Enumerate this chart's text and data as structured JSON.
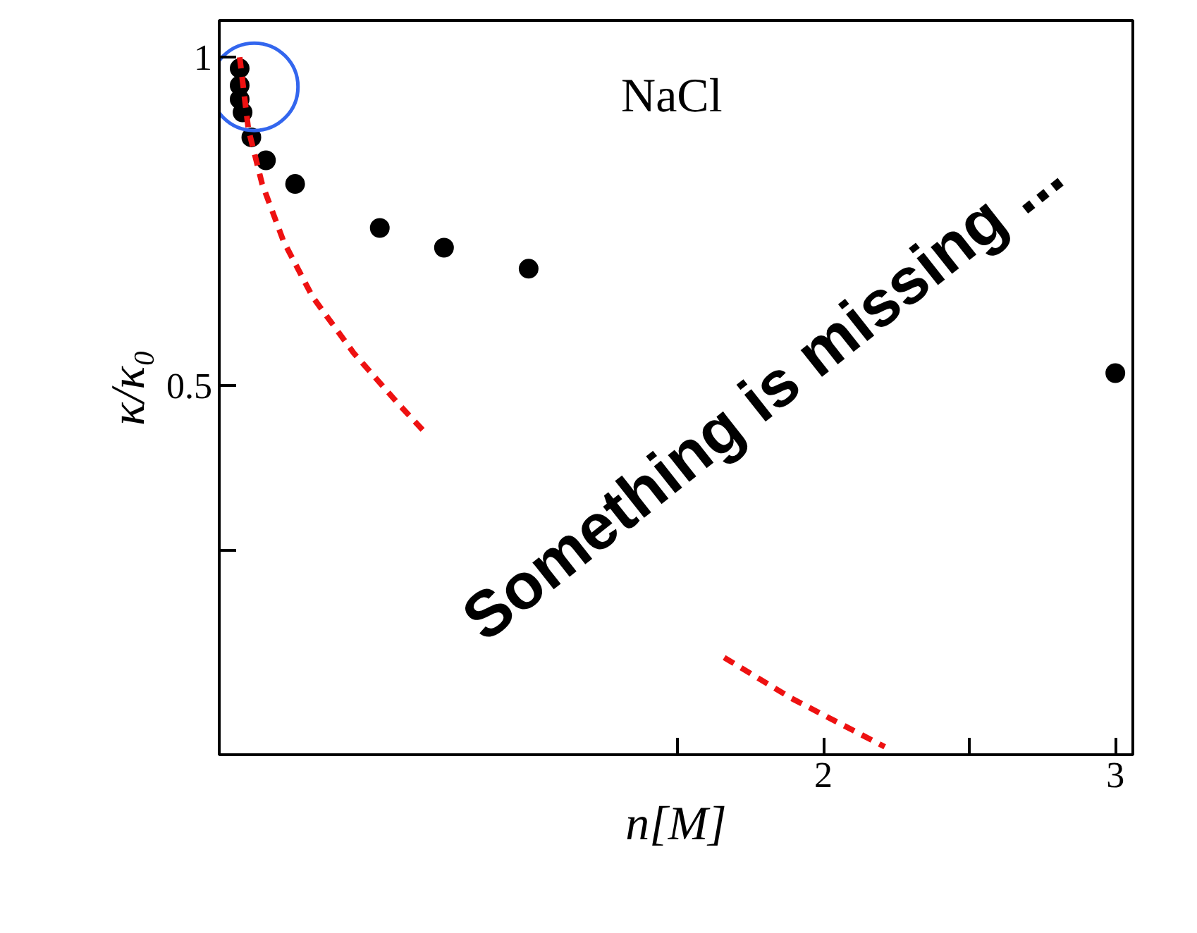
{
  "chart_data": {
    "type": "scatter",
    "xlabel": "n[M]",
    "ylabel": "κ/κ₀",
    "xlim": [
      -0.07,
      3.06
    ],
    "ylim": [
      -0.062,
      1.056
    ],
    "xticks": [
      {
        "value": 1.5,
        "label": null
      },
      2,
      {
        "value": 2.5,
        "label": null
      },
      3
    ],
    "yticks": [
      {
        "value": 0.25,
        "label": null
      },
      0.5,
      1
    ],
    "grid": false,
    "series": [
      {
        "marker": "circle",
        "color": "#000000",
        "x": [
          0.0,
          0.0,
          0.0,
          0.01,
          0.04,
          0.09,
          0.19,
          0.48,
          0.7,
          0.99,
          3.0
        ],
        "values": [
          0.983,
          0.957,
          0.936,
          0.916,
          0.878,
          0.843,
          0.807,
          0.74,
          0.71,
          0.678,
          0.519
        ]
      },
      {
        "type": "line",
        "line_style": "dashed",
        "color": "#ee1111",
        "x": [
          0.0,
          0.03,
          0.077,
          0.15,
          0.25,
          0.39,
          0.54,
          0.63,
          1.0,
          1.66,
          1.89,
          2.21
        ],
        "values": [
          1.0,
          0.89,
          0.807,
          0.72,
          0.635,
          0.55,
          0.474,
          0.431,
          null,
          0.086,
          0.024,
          -0.05
        ]
      }
    ],
    "annotations": [
      "NaCl",
      "Something is missing ..."
    ]
  }
}
